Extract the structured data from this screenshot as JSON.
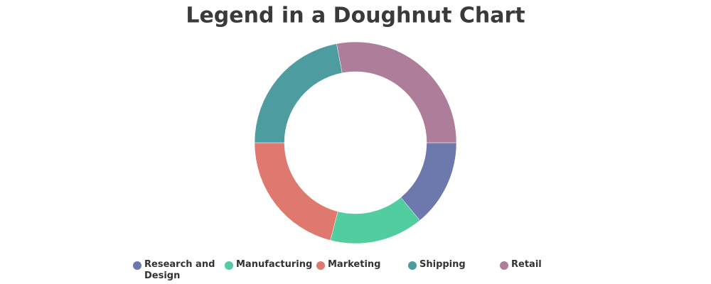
{
  "chart_data": {
    "type": "doughnut",
    "title": "Legend in a Doughnut Chart",
    "categories": [
      "Research and Design",
      "Manufacturing",
      "Marketing",
      "Shipping",
      "Retail"
    ],
    "values": [
      14,
      15,
      21,
      22,
      28
    ],
    "colors": [
      "#6d78ad",
      "#51cda0",
      "#df7970",
      "#4c9ca0",
      "#ae7d99"
    ],
    "legend": "bottom"
  }
}
